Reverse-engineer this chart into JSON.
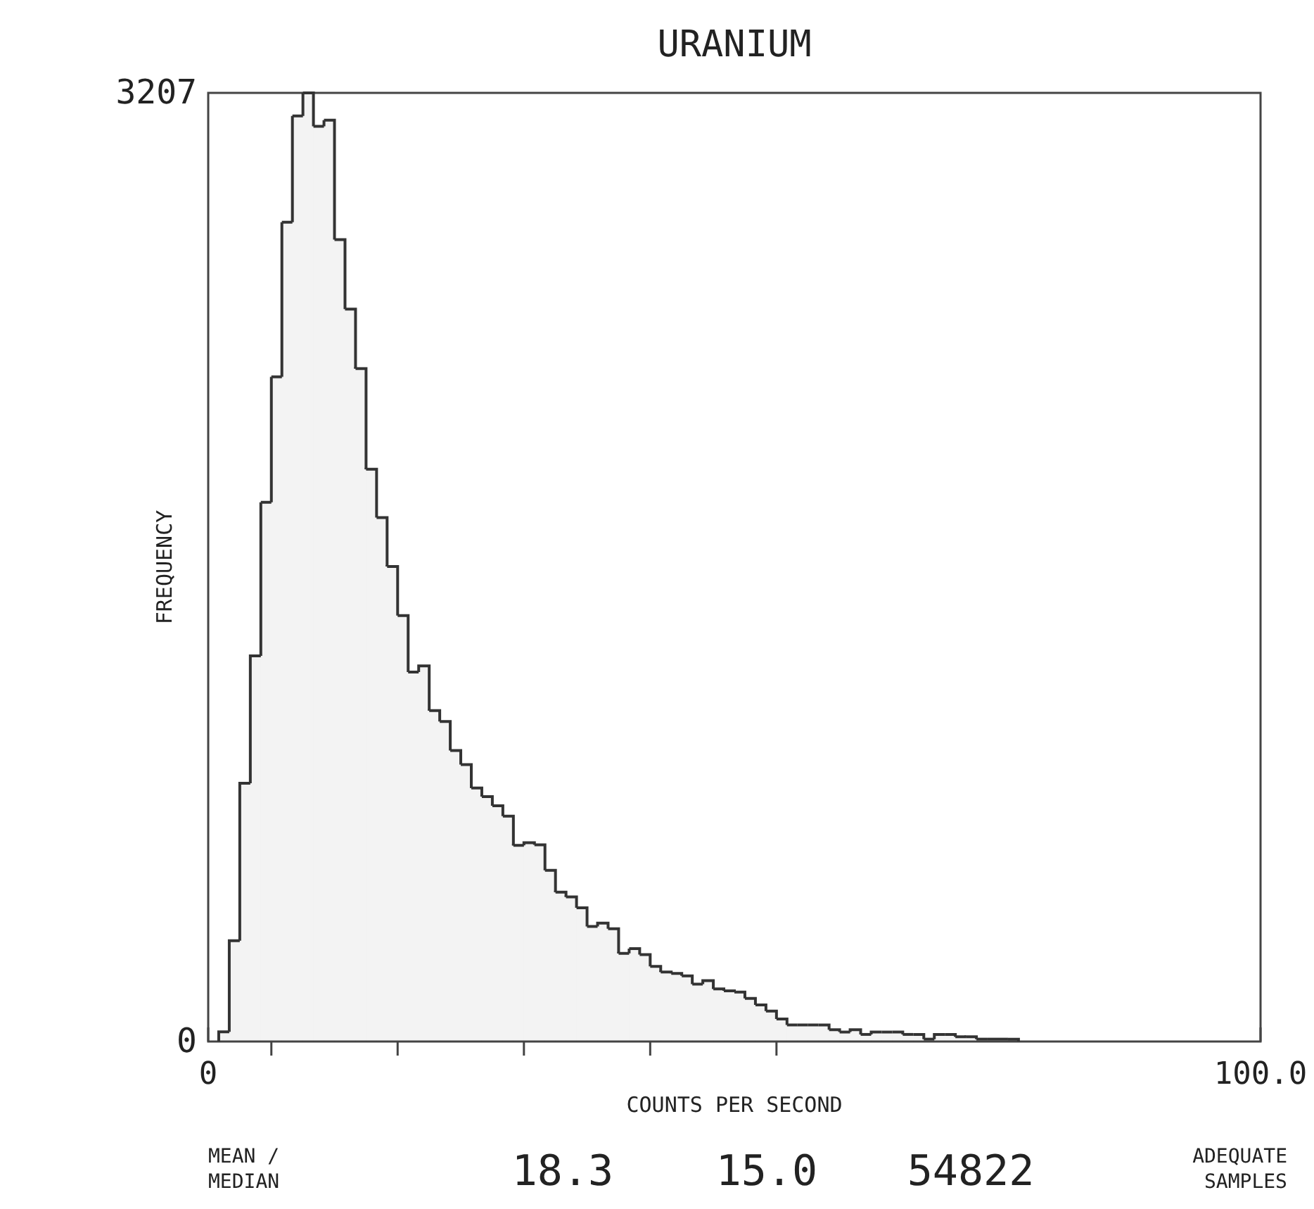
{
  "chart_data": {
    "type": "histogram",
    "title": "URANIUM",
    "xlabel": "COUNTS PER SECOND",
    "ylabel": "FREQUENCY",
    "bins": [
      0,
      1,
      2,
      3,
      4,
      5,
      6,
      7,
      8,
      9,
      10,
      11,
      12,
      13,
      14,
      15,
      16,
      17,
      18,
      19,
      20,
      21,
      22,
      23,
      24,
      25,
      26,
      27,
      28,
      29,
      30,
      31,
      32,
      33,
      34,
      35,
      36,
      37,
      38,
      39,
      40,
      41,
      42,
      43,
      44,
      45,
      46,
      47,
      48,
      49,
      50,
      51,
      52,
      53,
      54,
      55,
      56,
      57,
      58,
      59,
      60,
      61,
      62,
      63,
      64,
      65,
      66,
      67,
      68,
      69,
      70,
      71,
      72,
      73,
      74,
      75,
      76,
      77,
      78
    ],
    "values": [
      0,
      33,
      341,
      873,
      1304,
      1823,
      2247,
      2770,
      3129,
      3207,
      3094,
      3115,
      2711,
      2476,
      2275,
      1935,
      1771,
      1606,
      1440,
      1249,
      1270,
      1119,
      1082,
      984,
      936,
      857,
      828,
      797,
      762,
      663,
      672,
      665,
      579,
      505,
      489,
      452,
      389,
      400,
      381,
      298,
      314,
      294,
      254,
      235,
      230,
      222,
      194,
      206,
      178,
      171,
      167,
      146,
      124,
      103,
      76,
      56,
      56,
      56,
      56,
      40,
      32,
      40,
      24,
      32,
      32,
      32,
      24,
      24,
      8,
      24,
      24,
      16,
      16,
      8,
      8,
      8,
      8,
      0
    ],
    "color": "#333333",
    "xlim": [
      0,
      100
    ],
    "xticks": [
      0,
      {
        "value": 6,
        "label": null
      },
      {
        "value": 18,
        "label": null
      },
      {
        "value": 30,
        "label": null
      },
      {
        "value": 42,
        "label": null
      },
      {
        "value": 54,
        "label": null
      },
      {
        "value": 100,
        "label": "100.0"
      }
    ],
    "ylim": [
      0,
      3207
    ],
    "yticks": [
      0,
      3207
    ],
    "grid": false,
    "annotations": [
      "MEAN / MEDIAN",
      "18.3",
      "15.0",
      "54822",
      "ADEQUATE SAMPLES"
    ]
  }
}
